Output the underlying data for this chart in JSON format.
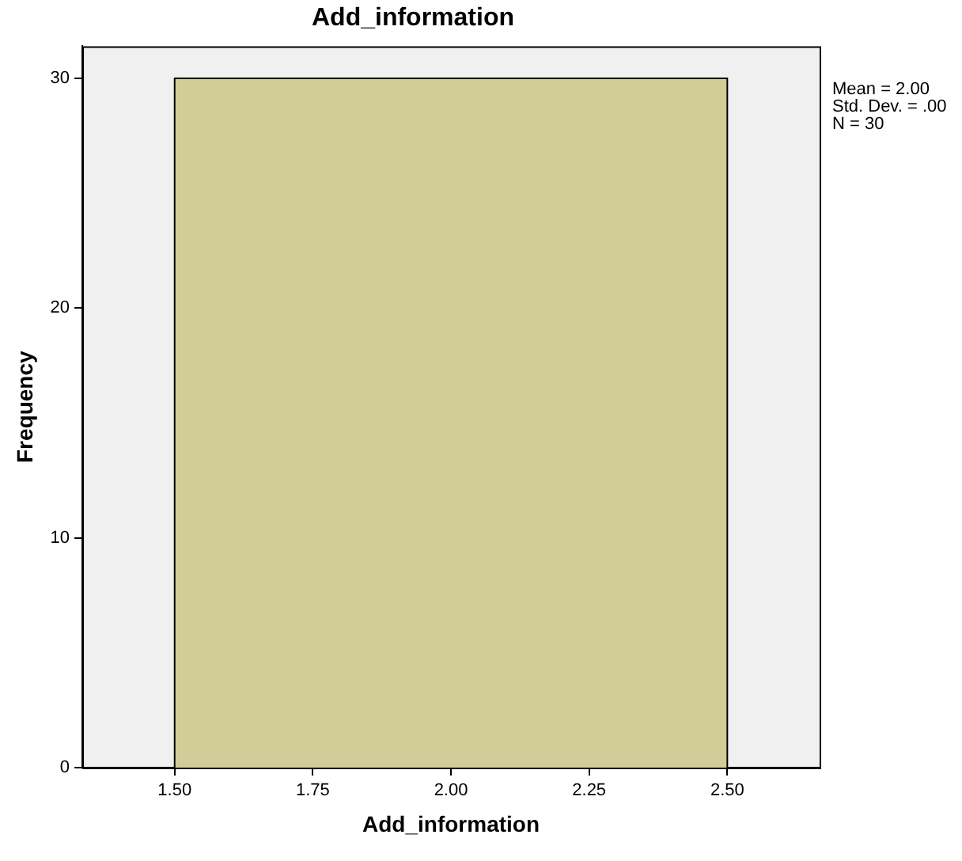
{
  "chart_data": {
    "type": "histogram",
    "title": "Add_information",
    "xlabel": "Add_information",
    "ylabel": "Frequency",
    "bins": [
      1.5,
      2.5
    ],
    "values": [
      30
    ],
    "color": "#d2cc98",
    "xlim": [
      1.333,
      2.667
    ],
    "xticks": [
      {
        "value": 1.5,
        "label": "1.50"
      },
      {
        "value": 1.75,
        "label": "1.75"
      },
      {
        "value": 2.0,
        "label": "2.00"
      },
      {
        "value": 2.25,
        "label": "2.25"
      },
      {
        "value": 2.5,
        "label": "2.50"
      }
    ],
    "ylim": [
      0,
      31.4
    ],
    "yticks": [
      0,
      10,
      20,
      30
    ],
    "annotations": [
      "Mean = 2.00",
      "Std. Dev. = .00",
      "N = 30"
    ],
    "grid": false,
    "legend": false
  }
}
